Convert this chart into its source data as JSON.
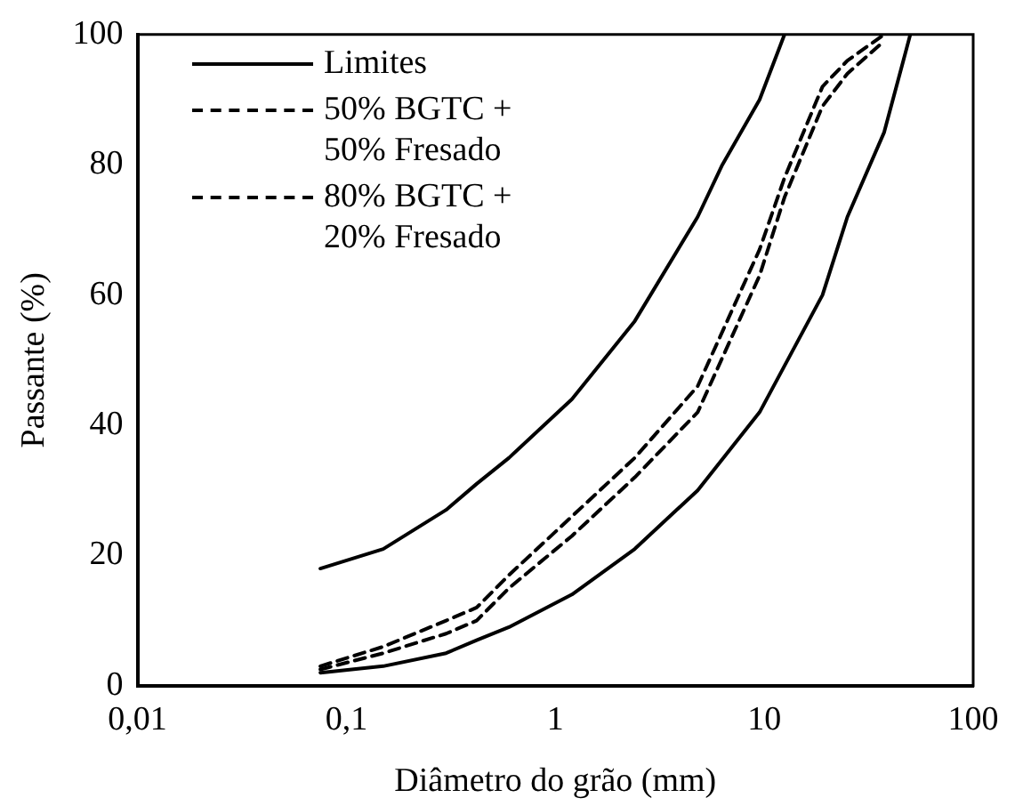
{
  "chart_data": {
    "type": "line",
    "xlabel": "Diâmetro do grão (mm)",
    "ylabel": "Passante (%)",
    "log": "x",
    "xlim": [
      0.01,
      100
    ],
    "xticks": [
      {
        "value": 0.01,
        "label": "0,01"
      },
      {
        "value": 0.1,
        "label": "0,1"
      },
      1,
      10,
      100
    ],
    "ylim": [
      0,
      100
    ],
    "yticks": [
      0,
      20,
      40,
      60,
      80,
      100
    ],
    "grid": false,
    "legend": "top left",
    "marker": "none",
    "series": [
      {
        "name": "Limites",
        "color": "#000000",
        "line_style": "solid",
        "x": [
          0.075,
          0.15,
          0.3,
          0.42,
          0.6,
          1.2,
          2.4,
          4.8,
          6.3,
          9.5,
          12.5
        ],
        "values": [
          18,
          21,
          27,
          31,
          35,
          44,
          56,
          72,
          80,
          90,
          100
        ]
      },
      {
        "color": "#000000",
        "line_style": "solid",
        "x": [
          0.075,
          0.15,
          0.3,
          0.42,
          0.6,
          1.2,
          2.4,
          4.8,
          9.5,
          19,
          25,
          37.5,
          50
        ],
        "values": [
          2,
          3,
          5,
          7,
          9,
          14,
          21,
          30,
          42,
          60,
          72,
          85,
          100
        ]
      },
      {
        "name": "50% BGTC + 50% Fresado",
        "color": "#000000",
        "line_style": "dashed",
        "x": [
          0.075,
          0.15,
          0.3,
          0.42,
          0.6,
          1.2,
          2.4,
          4.8,
          9.5,
          12.5,
          19,
          25,
          37.5
        ],
        "values": [
          3,
          6,
          10,
          12,
          17,
          26,
          35,
          46,
          67,
          78,
          92,
          96,
          100
        ]
      },
      {
        "name": "80% BGTC + 20% Fresado",
        "color": "#000000",
        "line_style": "dashed",
        "x": [
          0.075,
          0.15,
          0.3,
          0.42,
          0.6,
          1.2,
          2.4,
          4.8,
          9.5,
          12.5,
          19,
          25,
          37.5
        ],
        "values": [
          2.5,
          5,
          8,
          10,
          15,
          23,
          32,
          42,
          63,
          75,
          89,
          94,
          99
        ]
      }
    ]
  }
}
